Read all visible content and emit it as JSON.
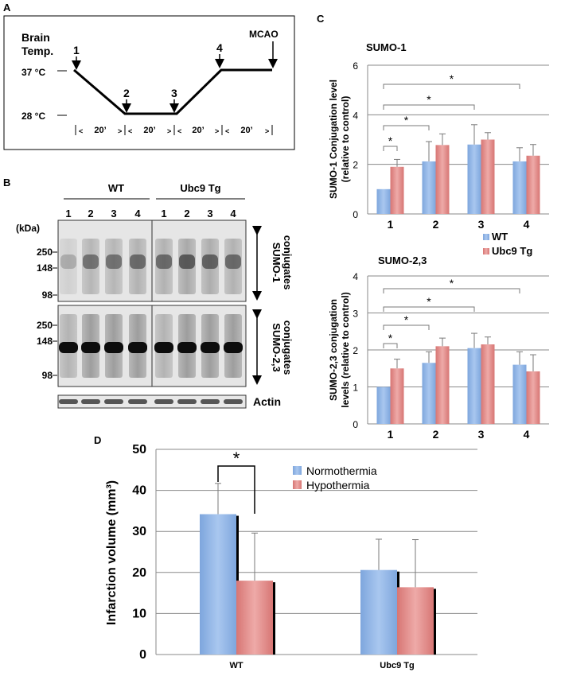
{
  "panel_labels": {
    "a": "A",
    "b": "B",
    "c": "C",
    "d": "D"
  },
  "protocol": {
    "y_title": [
      "Brain",
      "Temp."
    ],
    "temp_high": "37 °C",
    "temp_low": "28 °C",
    "timepoints": [
      "1",
      "2",
      "3",
      "4"
    ],
    "end_label": "MCAO",
    "intervals": [
      "20’",
      "20’",
      "20’",
      "20’"
    ]
  },
  "blot": {
    "groups": [
      "WT",
      "Ubc9 Tg"
    ],
    "lanes": [
      "1",
      "2",
      "3",
      "4",
      "1",
      "2",
      "3",
      "4"
    ],
    "unit": "(kDa)",
    "markers_top": [
      "250",
      "148",
      "98"
    ],
    "markers_bottom": [
      "250",
      "148",
      "98"
    ],
    "label_top": [
      "SUMO-1",
      "conjugates"
    ],
    "label_bottom": [
      "SUMO-2,3",
      "conjugates"
    ],
    "loading": "Actin"
  },
  "colors": {
    "wt": "#8fb4e3",
    "tg": "#e08a88",
    "wt_dark": "#5d8ac9",
    "tg_dark": "#c65e5c"
  },
  "chart_data": [
    {
      "type": "bar",
      "title": "SUMO-1",
      "ylabel": [
        "SUMO-1 Conjugation level",
        "(relative to control)"
      ],
      "categories": [
        "1",
        "2",
        "3",
        "4"
      ],
      "series": [
        {
          "name": "WT",
          "values": [
            1.0,
            2.12,
            2.8,
            2.12
          ],
          "errors": [
            0.0,
            0.8,
            0.8,
            0.55
          ]
        },
        {
          "name": "Ubc9 Tg",
          "values": [
            1.9,
            2.78,
            3.0,
            2.35
          ],
          "errors": [
            0.3,
            0.45,
            0.28,
            0.45
          ]
        }
      ],
      "ylim": [
        0,
        6
      ],
      "yticks": [
        "0",
        "2",
        "4",
        "6"
      ],
      "grid": true,
      "significance": "*",
      "legend": [
        "WT",
        "Ubc9 Tg"
      ]
    },
    {
      "type": "bar",
      "title": "SUMO-2,3",
      "ylabel": [
        "SUMO-2,3 conjugation",
        "levels (relative to control)"
      ],
      "categories": [
        "1",
        "2",
        "3",
        "4"
      ],
      "series": [
        {
          "name": "WT",
          "values": [
            1.0,
            1.65,
            2.05,
            1.6
          ],
          "errors": [
            0.0,
            0.3,
            0.4,
            0.35
          ]
        },
        {
          "name": "Ubc9 Tg",
          "values": [
            1.5,
            2.1,
            2.15,
            1.42
          ],
          "errors": [
            0.25,
            0.22,
            0.2,
            0.45
          ]
        }
      ],
      "ylim": [
        0,
        4
      ],
      "yticks": [
        "0",
        "1",
        "2",
        "3",
        "4"
      ],
      "grid": true,
      "significance": "*"
    },
    {
      "type": "bar",
      "ylabel": "Infarction volume (mm³)",
      "categories": [
        "WT",
        "Ubc9 Tg"
      ],
      "series": [
        {
          "name": "Normothermia",
          "values": [
            34.2,
            20.6
          ],
          "errors": [
            7.5,
            7.5
          ]
        },
        {
          "name": "Hypothermia",
          "values": [
            18.0,
            16.4
          ],
          "errors": [
            11.6,
            11.6
          ]
        }
      ],
      "ylim": [
        0,
        50
      ],
      "yticks": [
        "0",
        "10",
        "20",
        "30",
        "40",
        "50"
      ],
      "grid": true,
      "significance": "*",
      "legend": [
        "Normothermia",
        "Hypothermia"
      ]
    }
  ]
}
